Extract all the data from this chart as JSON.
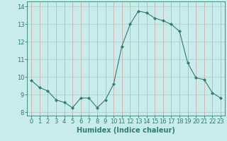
{
  "x": [
    0,
    1,
    2,
    3,
    4,
    5,
    6,
    7,
    8,
    9,
    10,
    11,
    12,
    13,
    14,
    15,
    16,
    17,
    18,
    19,
    20,
    21,
    22,
    23
  ],
  "y": [
    9.8,
    9.4,
    9.2,
    8.7,
    8.55,
    8.25,
    8.8,
    8.8,
    8.25,
    8.7,
    9.6,
    11.75,
    13.0,
    13.75,
    13.65,
    13.35,
    13.2,
    13.0,
    12.6,
    10.8,
    9.95,
    9.85,
    9.1,
    8.8
  ],
  "xlabel": "Humidex (Indice chaleur)",
  "xlim": [
    -0.5,
    23.5
  ],
  "ylim": [
    7.8,
    14.3
  ],
  "yticks": [
    8,
    9,
    10,
    11,
    12,
    13,
    14
  ],
  "xticks": [
    0,
    1,
    2,
    3,
    4,
    5,
    6,
    7,
    8,
    9,
    10,
    11,
    12,
    13,
    14,
    15,
    16,
    17,
    18,
    19,
    20,
    21,
    22,
    23
  ],
  "line_color": "#2e7d6e",
  "marker": "D",
  "marker_size": 2.0,
  "bg_color": "#c8ecea",
  "grid_color_x": "#d4a0a0",
  "grid_color_y": "#a8ceca",
  "xlabel_fontsize": 7,
  "tick_fontsize": 6,
  "linewidth": 0.8
}
